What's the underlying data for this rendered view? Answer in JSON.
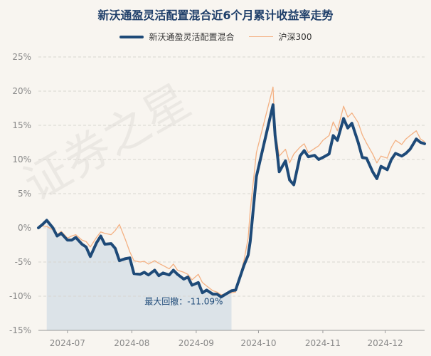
{
  "chart_data": {
    "type": "line",
    "title": "新沃通盈灵活配置混合近6个月累计收益率走势",
    "series": [
      {
        "name": "新沃通盈灵活配置混合",
        "color": "#1e4a78",
        "x": [
          "2024-06-17",
          "2024-06-19",
          "2024-06-21",
          "2024-06-24",
          "2024-06-26",
          "2024-06-28",
          "2024-07-01",
          "2024-07-03",
          "2024-07-05",
          "2024-07-08",
          "2024-07-10",
          "2024-07-12",
          "2024-07-15",
          "2024-07-17",
          "2024-07-19",
          "2024-07-22",
          "2024-07-24",
          "2024-07-26",
          "2024-07-29",
          "2024-07-31",
          "2024-08-02",
          "2024-08-05",
          "2024-08-07",
          "2024-08-09",
          "2024-08-12",
          "2024-08-14",
          "2024-08-16",
          "2024-08-19",
          "2024-08-21",
          "2024-08-23",
          "2024-08-26",
          "2024-08-28",
          "2024-08-30",
          "2024-09-02",
          "2024-09-04",
          "2024-09-06",
          "2024-09-09",
          "2024-09-11",
          "2024-09-13",
          "2024-09-18",
          "2024-09-20",
          "2024-09-24",
          "2024-09-26",
          "2024-09-27",
          "2024-09-30",
          "2024-10-08",
          "2024-10-09",
          "2024-10-10",
          "2024-10-11",
          "2024-10-14",
          "2024-10-16",
          "2024-10-18",
          "2024-10-21",
          "2024-10-23",
          "2024-10-25",
          "2024-10-28",
          "2024-10-30",
          "2024-11-01",
          "2024-11-04",
          "2024-11-06",
          "2024-11-08",
          "2024-11-11",
          "2024-11-13",
          "2024-11-15",
          "2024-11-18",
          "2024-11-20",
          "2024-11-22",
          "2024-11-25",
          "2024-11-27",
          "2024-11-29",
          "2024-12-02",
          "2024-12-04",
          "2024-12-06",
          "2024-12-09",
          "2024-12-11",
          "2024-12-13",
          "2024-12-16",
          "2024-12-18",
          "2024-12-20"
        ],
        "values": [
          0.0,
          0.5,
          1.1,
          0.0,
          -1.2,
          -0.8,
          -1.8,
          -1.8,
          -1.4,
          -2.4,
          -2.8,
          -4.2,
          -2.2,
          -1.2,
          -2.4,
          -2.3,
          -3.0,
          -4.8,
          -4.5,
          -4.4,
          -6.7,
          -6.8,
          -6.5,
          -6.9,
          -6.2,
          -7.0,
          -6.6,
          -6.9,
          -6.2,
          -6.8,
          -7.5,
          -7.2,
          -8.4,
          -8.0,
          -9.5,
          -9.1,
          -9.7,
          -9.7,
          -10.1,
          -9.2,
          -9.1,
          -5.5,
          -4.0,
          -2.0,
          7.5,
          18.0,
          13.5,
          11.0,
          8.2,
          9.8,
          7.0,
          6.3,
          10.5,
          11.3,
          10.4,
          10.6,
          10.0,
          10.3,
          10.8,
          13.5,
          12.8,
          16.0,
          14.6,
          15.3,
          12.5,
          10.3,
          10.2,
          8.2,
          7.2,
          9.0,
          8.5,
          10.0,
          10.9,
          10.5,
          10.9,
          11.5,
          13.0,
          12.5,
          12.3
        ]
      },
      {
        "name": "沪深300",
        "color": "#f4b183",
        "x": [
          "2024-06-17",
          "2024-06-19",
          "2024-06-21",
          "2024-06-24",
          "2024-06-26",
          "2024-06-28",
          "2024-07-01",
          "2024-07-03",
          "2024-07-05",
          "2024-07-08",
          "2024-07-10",
          "2024-07-12",
          "2024-07-15",
          "2024-07-17",
          "2024-07-19",
          "2024-07-22",
          "2024-07-24",
          "2024-07-26",
          "2024-07-29",
          "2024-07-31",
          "2024-08-02",
          "2024-08-05",
          "2024-08-07",
          "2024-08-09",
          "2024-08-12",
          "2024-08-14",
          "2024-08-16",
          "2024-08-19",
          "2024-08-21",
          "2024-08-23",
          "2024-08-26",
          "2024-08-28",
          "2024-08-30",
          "2024-09-02",
          "2024-09-04",
          "2024-09-06",
          "2024-09-09",
          "2024-09-11",
          "2024-09-13",
          "2024-09-18",
          "2024-09-20",
          "2024-09-24",
          "2024-09-26",
          "2024-09-27",
          "2024-09-30",
          "2024-10-08",
          "2024-10-09",
          "2024-10-10",
          "2024-10-11",
          "2024-10-14",
          "2024-10-16",
          "2024-10-18",
          "2024-10-21",
          "2024-10-23",
          "2024-10-25",
          "2024-10-28",
          "2024-10-30",
          "2024-11-01",
          "2024-11-04",
          "2024-11-06",
          "2024-11-08",
          "2024-11-11",
          "2024-11-13",
          "2024-11-15",
          "2024-11-18",
          "2024-11-20",
          "2024-11-22",
          "2024-11-25",
          "2024-11-27",
          "2024-11-29",
          "2024-12-02",
          "2024-12-04",
          "2024-12-06",
          "2024-12-09",
          "2024-12-11",
          "2024-12-13",
          "2024-12-16",
          "2024-12-18",
          "2024-12-20"
        ],
        "values": [
          0.0,
          0.3,
          0.2,
          -0.3,
          -1.0,
          -0.5,
          -1.5,
          -1.2,
          -1.0,
          -1.8,
          -2.0,
          -2.8,
          -1.4,
          -0.6,
          -0.8,
          -1.0,
          -0.4,
          0.5,
          -1.8,
          -3.5,
          -4.8,
          -5.0,
          -4.9,
          -5.3,
          -4.8,
          -5.2,
          -5.5,
          -6.0,
          -5.3,
          -6.2,
          -6.5,
          -6.8,
          -7.6,
          -6.8,
          -8.0,
          -8.5,
          -9.2,
          -9.4,
          -9.8,
          -9.5,
          -9.4,
          -4.8,
          -1.5,
          2.5,
          11.0,
          20.6,
          13.8,
          12.5,
          10.5,
          11.5,
          9.5,
          10.8,
          11.8,
          12.3,
          11.0,
          11.6,
          12.0,
          12.8,
          13.5,
          15.5,
          14.2,
          17.8,
          16.2,
          16.8,
          15.4,
          13.6,
          12.4,
          10.8,
          9.5,
          10.5,
          10.2,
          11.8,
          12.8,
          12.2,
          13.0,
          13.5,
          14.2,
          13.0,
          12.6
        ]
      }
    ],
    "xticks": [
      {
        "label": "2024-07",
        "date": "2024-07-01"
      },
      {
        "label": "2024-08",
        "date": "2024-08-01"
      },
      {
        "label": "2024-09",
        "date": "2024-09-01"
      },
      {
        "label": "2024-10",
        "date": "2024-10-01"
      },
      {
        "label": "2024-11",
        "date": "2024-11-01"
      },
      {
        "label": "2024-12",
        "date": "2024-12-01"
      }
    ],
    "xlim": [
      "2024-06-17",
      "2024-12-20"
    ],
    "ylim": [
      -15,
      25
    ],
    "yticks": [
      25,
      20,
      15,
      10,
      5,
      0,
      -5,
      -10,
      -15
    ],
    "ytick_labels": [
      "25%",
      "20%",
      "15%",
      "10%",
      "5%",
      "0%",
      "-5%",
      "-10%",
      "-15%"
    ],
    "grid": "horizontal-dashed",
    "legend_position": "top-center",
    "max_drawdown": {
      "label": "最大回撤：-11.09%",
      "start": "2024-06-21",
      "end": "2024-09-18",
      "fill_color": "#d3dce6"
    }
  },
  "watermark_text": "证券之星"
}
